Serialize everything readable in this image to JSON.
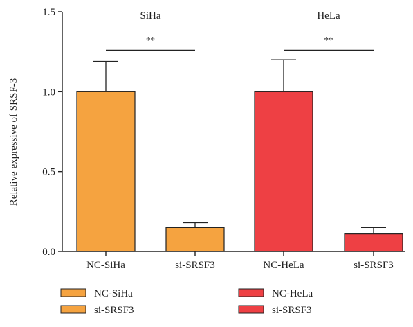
{
  "chart_data": {
    "type": "bar",
    "title": "",
    "xlabel": "",
    "ylabel": "Relative expressive of SRSF-3",
    "ylim": [
      0,
      1.5
    ],
    "yticks": [
      {
        "value": 0.0,
        "label": "0.0"
      },
      {
        "value": 0.5,
        "label": "0.5"
      },
      {
        "value": 1.0,
        "label": "1.0"
      },
      {
        "value": 1.5,
        "label": "1.5"
      }
    ],
    "categories": [
      "NC-SiHa",
      "si-SRSF3",
      "NC-HeLa",
      "si-SRSF3"
    ],
    "values": [
      1.0,
      0.15,
      1.0,
      0.11
    ],
    "errors": [
      0.19,
      0.03,
      0.2,
      0.04
    ],
    "colors": [
      "#F5A340",
      "#F5A340",
      "#EE4044",
      "#EE4044"
    ],
    "grid": false,
    "legend_position": "bottom",
    "group_labels": [
      {
        "text": "SiHa",
        "between": [
          0,
          1
        ]
      },
      {
        "text": "HeLa",
        "between": [
          2,
          3
        ]
      }
    ],
    "annotations": [
      {
        "text": "**",
        "between": [
          0,
          1
        ],
        "y": 1.26
      },
      {
        "text": "**",
        "between": [
          2,
          3
        ],
        "y": 1.26
      }
    ],
    "legend": [
      {
        "label": "NC-SiHa",
        "color": "#F5A340"
      },
      {
        "label": "si-SRSF3",
        "color": "#F5A340"
      },
      {
        "label": "NC-HeLa",
        "color": "#EE4044"
      },
      {
        "label": "si-SRSF3",
        "color": "#EE4044"
      }
    ]
  }
}
